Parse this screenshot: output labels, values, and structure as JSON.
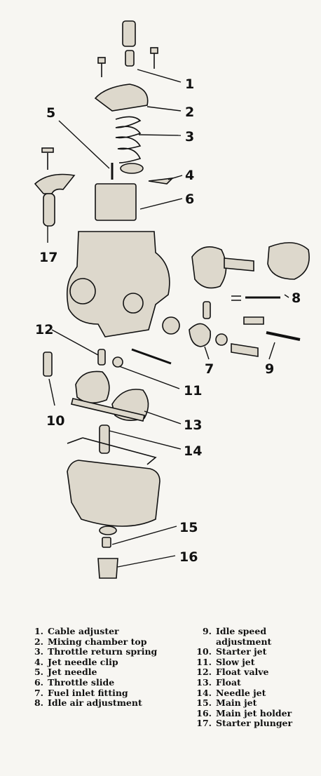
{
  "callouts": [
    "1",
    "2",
    "3",
    "4",
    "5",
    "6",
    "7",
    "8",
    "9",
    "10",
    "11",
    "12",
    "13",
    "14",
    "15",
    "16",
    "17"
  ],
  "legend": {
    "left": [
      {
        "num": "1.",
        "label": "Cable adjuster"
      },
      {
        "num": "2.",
        "label": "Mixing chamber top"
      },
      {
        "num": "3.",
        "label": "Throttle return spring"
      },
      {
        "num": "4.",
        "label": "Jet needle clip"
      },
      {
        "num": "5.",
        "label": "Jet needle"
      },
      {
        "num": "6.",
        "label": "Throttle slide"
      },
      {
        "num": "7.",
        "label": "Fuel inlet fitting"
      },
      {
        "num": "8.",
        "label": "Idle air adjustment"
      }
    ],
    "right": [
      {
        "num": "9.",
        "label": "Idle speed adjustment"
      },
      {
        "num": "10.",
        "label": "Starter jet"
      },
      {
        "num": "11.",
        "label": "Slow jet"
      },
      {
        "num": "12.",
        "label": "Float valve"
      },
      {
        "num": "13.",
        "label": "Float"
      },
      {
        "num": "14.",
        "label": "Needle jet"
      },
      {
        "num": "15.",
        "label": "Main jet"
      },
      {
        "num": "16.",
        "label": "Main jet holder"
      },
      {
        "num": "17.",
        "label": "Starter plunger"
      }
    ]
  }
}
